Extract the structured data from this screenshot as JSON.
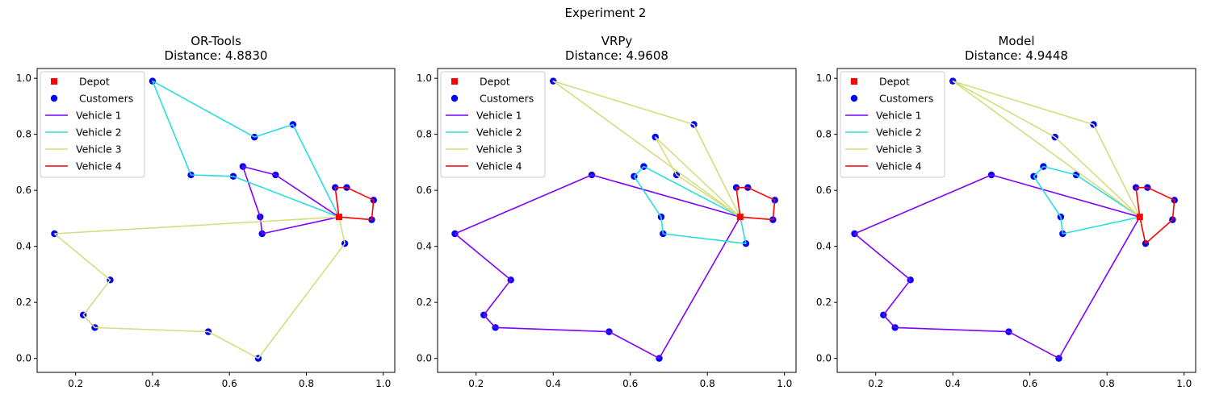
{
  "figure": {
    "suptitle": "Experiment 2"
  },
  "chart_data": [
    {
      "type": "line",
      "title": "OR-Tools",
      "subtitle": "Distance: 4.8830",
      "xlim": [
        0.1,
        1.03
      ],
      "ylim": [
        -0.05,
        1.035
      ],
      "xticks": [
        "0.2",
        "0.4",
        "0.6",
        "0.8",
        "1.0"
      ],
      "yticks": [
        "0.0",
        "0.2",
        "0.4",
        "0.6",
        "0.8",
        "1.0"
      ],
      "legend_position": "top-left",
      "depot": {
        "label": "Depot",
        "color": "#ff0000",
        "x": 0.885,
        "y": 0.505
      },
      "customers": {
        "label": "Customers",
        "color": "#0000ff",
        "points": [
          [
            0.4,
            0.99
          ],
          [
            0.765,
            0.835
          ],
          [
            0.665,
            0.79
          ],
          [
            0.635,
            0.685
          ],
          [
            0.72,
            0.655
          ],
          [
            0.5,
            0.655
          ],
          [
            0.61,
            0.65
          ],
          [
            0.875,
            0.61
          ],
          [
            0.905,
            0.61
          ],
          [
            0.975,
            0.565
          ],
          [
            0.68,
            0.505
          ],
          [
            0.97,
            0.495
          ],
          [
            0.685,
            0.445
          ],
          [
            0.145,
            0.445
          ],
          [
            0.9,
            0.41
          ],
          [
            0.29,
            0.28
          ],
          [
            0.22,
            0.155
          ],
          [
            0.25,
            0.11
          ],
          [
            0.545,
            0.095
          ],
          [
            0.675,
            0.0
          ]
        ]
      },
      "series": [
        {
          "name": "Vehicle 1",
          "color": "#8000ff",
          "path": [
            [
              0.885,
              0.505
            ],
            [
              0.685,
              0.445
            ],
            [
              0.68,
              0.505
            ],
            [
              0.635,
              0.685
            ],
            [
              0.72,
              0.655
            ],
            [
              0.885,
              0.505
            ]
          ]
        },
        {
          "name": "Vehicle 2",
          "color": "#2adddd",
          "path": [
            [
              0.885,
              0.505
            ],
            [
              0.61,
              0.65
            ],
            [
              0.5,
              0.655
            ],
            [
              0.4,
              0.99
            ],
            [
              0.665,
              0.79
            ],
            [
              0.765,
              0.835
            ],
            [
              0.885,
              0.505
            ]
          ]
        },
        {
          "name": "Vehicle 3",
          "color": "#d4dd80",
          "path": [
            [
              0.885,
              0.505
            ],
            [
              0.145,
              0.445
            ],
            [
              0.29,
              0.28
            ],
            [
              0.22,
              0.155
            ],
            [
              0.25,
              0.11
            ],
            [
              0.545,
              0.095
            ],
            [
              0.675,
              0.0
            ],
            [
              0.9,
              0.41
            ],
            [
              0.885,
              0.505
            ]
          ]
        },
        {
          "name": "Vehicle 4",
          "color": "#ff0000",
          "path": [
            [
              0.885,
              0.505
            ],
            [
              0.875,
              0.61
            ],
            [
              0.905,
              0.61
            ],
            [
              0.975,
              0.565
            ],
            [
              0.97,
              0.495
            ],
            [
              0.885,
              0.505
            ]
          ]
        }
      ]
    },
    {
      "type": "line",
      "title": "VRPy",
      "subtitle": "Distance: 4.9608",
      "xlim": [
        0.1,
        1.03
      ],
      "ylim": [
        -0.05,
        1.035
      ],
      "xticks": [
        "0.2",
        "0.4",
        "0.6",
        "0.8",
        "1.0"
      ],
      "yticks": [
        "0.0",
        "0.2",
        "0.4",
        "0.6",
        "0.8",
        "1.0"
      ],
      "legend_position": "top-left",
      "depot": {
        "label": "Depot",
        "color": "#ff0000",
        "x": 0.885,
        "y": 0.505
      },
      "customers": {
        "label": "Customers",
        "color": "#0000ff",
        "points": [
          [
            0.4,
            0.99
          ],
          [
            0.765,
            0.835
          ],
          [
            0.665,
            0.79
          ],
          [
            0.635,
            0.685
          ],
          [
            0.72,
            0.655
          ],
          [
            0.5,
            0.655
          ],
          [
            0.61,
            0.65
          ],
          [
            0.875,
            0.61
          ],
          [
            0.905,
            0.61
          ],
          [
            0.975,
            0.565
          ],
          [
            0.68,
            0.505
          ],
          [
            0.97,
            0.495
          ],
          [
            0.685,
            0.445
          ],
          [
            0.145,
            0.445
          ],
          [
            0.9,
            0.41
          ],
          [
            0.29,
            0.28
          ],
          [
            0.22,
            0.155
          ],
          [
            0.25,
            0.11
          ],
          [
            0.545,
            0.095
          ],
          [
            0.675,
            0.0
          ]
        ]
      },
      "series": [
        {
          "name": "Vehicle 1",
          "color": "#8000ff",
          "path": [
            [
              0.885,
              0.505
            ],
            [
              0.5,
              0.655
            ],
            [
              0.145,
              0.445
            ],
            [
              0.29,
              0.28
            ],
            [
              0.22,
              0.155
            ],
            [
              0.25,
              0.11
            ],
            [
              0.545,
              0.095
            ],
            [
              0.675,
              0.0
            ],
            [
              0.885,
              0.505
            ]
          ]
        },
        {
          "name": "Vehicle 2",
          "color": "#2adddd",
          "path": [
            [
              0.885,
              0.505
            ],
            [
              0.635,
              0.685
            ],
            [
              0.61,
              0.65
            ],
            [
              0.68,
              0.505
            ],
            [
              0.685,
              0.445
            ],
            [
              0.9,
              0.41
            ],
            [
              0.885,
              0.505
            ]
          ]
        },
        {
          "name": "Vehicle 3",
          "color": "#d4dd80",
          "path": [
            [
              0.885,
              0.505
            ],
            [
              0.4,
              0.99
            ],
            [
              0.765,
              0.835
            ],
            [
              0.885,
              0.505
            ],
            [
              0.665,
              0.79
            ],
            [
              0.72,
              0.655
            ],
            [
              0.885,
              0.505
            ]
          ]
        },
        {
          "name": "Vehicle 4",
          "color": "#ff0000",
          "path": [
            [
              0.885,
              0.505
            ],
            [
              0.875,
              0.61
            ],
            [
              0.905,
              0.61
            ],
            [
              0.975,
              0.565
            ],
            [
              0.97,
              0.495
            ],
            [
              0.885,
              0.505
            ]
          ]
        }
      ]
    },
    {
      "type": "line",
      "title": "Model",
      "subtitle": "Distance: 4.9448",
      "xlim": [
        0.1,
        1.03
      ],
      "ylim": [
        -0.05,
        1.035
      ],
      "xticks": [
        "0.2",
        "0.4",
        "0.6",
        "0.8",
        "1.0"
      ],
      "yticks": [
        "0.0",
        "0.2",
        "0.4",
        "0.6",
        "0.8",
        "1.0"
      ],
      "legend_position": "top-left",
      "depot": {
        "label": "Depot",
        "color": "#ff0000",
        "x": 0.885,
        "y": 0.505
      },
      "customers": {
        "label": "Customers",
        "color": "#0000ff",
        "points": [
          [
            0.4,
            0.99
          ],
          [
            0.765,
            0.835
          ],
          [
            0.665,
            0.79
          ],
          [
            0.635,
            0.685
          ],
          [
            0.72,
            0.655
          ],
          [
            0.5,
            0.655
          ],
          [
            0.61,
            0.65
          ],
          [
            0.875,
            0.61
          ],
          [
            0.905,
            0.61
          ],
          [
            0.975,
            0.565
          ],
          [
            0.68,
            0.505
          ],
          [
            0.97,
            0.495
          ],
          [
            0.685,
            0.445
          ],
          [
            0.145,
            0.445
          ],
          [
            0.9,
            0.41
          ],
          [
            0.29,
            0.28
          ],
          [
            0.22,
            0.155
          ],
          [
            0.25,
            0.11
          ],
          [
            0.545,
            0.095
          ],
          [
            0.675,
            0.0
          ]
        ]
      },
      "series": [
        {
          "name": "Vehicle 1",
          "color": "#8000ff",
          "path": [
            [
              0.885,
              0.505
            ],
            [
              0.5,
              0.655
            ],
            [
              0.145,
              0.445
            ],
            [
              0.29,
              0.28
            ],
            [
              0.22,
              0.155
            ],
            [
              0.25,
              0.11
            ],
            [
              0.545,
              0.095
            ],
            [
              0.675,
              0.0
            ],
            [
              0.885,
              0.505
            ]
          ]
        },
        {
          "name": "Vehicle 2",
          "color": "#2adddd",
          "path": [
            [
              0.885,
              0.505
            ],
            [
              0.685,
              0.445
            ],
            [
              0.68,
              0.505
            ],
            [
              0.61,
              0.65
            ],
            [
              0.635,
              0.685
            ],
            [
              0.72,
              0.655
            ],
            [
              0.885,
              0.505
            ]
          ]
        },
        {
          "name": "Vehicle 3",
          "color": "#d4dd80",
          "path": [
            [
              0.885,
              0.505
            ],
            [
              0.4,
              0.99
            ],
            [
              0.765,
              0.835
            ],
            [
              0.885,
              0.505
            ],
            [
              0.665,
              0.79
            ],
            [
              0.4,
              0.99
            ]
          ]
        },
        {
          "name": "Vehicle 4",
          "color": "#ff0000",
          "path": [
            [
              0.885,
              0.505
            ],
            [
              0.875,
              0.61
            ],
            [
              0.905,
              0.61
            ],
            [
              0.975,
              0.565
            ],
            [
              0.97,
              0.495
            ],
            [
              0.9,
              0.41
            ],
            [
              0.885,
              0.505
            ]
          ]
        }
      ]
    }
  ]
}
